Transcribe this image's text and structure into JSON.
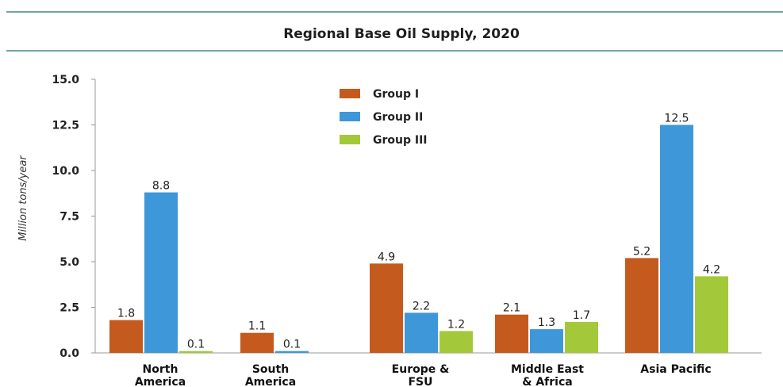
{
  "chart_data": {
    "type": "bar",
    "title": "Regional Base Oil Supply, 2020",
    "ylabel": "Million tons/year",
    "xlabel": "",
    "ylim": [
      0,
      15
    ],
    "yticks": [
      "0.0",
      "2.5",
      "5.0",
      "7.5",
      "10.0",
      "12.5",
      "15.0"
    ],
    "categories": [
      [
        "North",
        "America"
      ],
      [
        "South",
        "America"
      ],
      [
        "Europe &",
        "FSU"
      ],
      [
        "Middle East",
        "& Africa"
      ],
      [
        "Asia Pacific"
      ]
    ],
    "series": [
      {
        "name": "Group I",
        "color": "#c55a1e",
        "values": [
          1.8,
          1.1,
          4.9,
          2.1,
          5.2
        ],
        "labels": [
          "1.8",
          "1.1",
          "4.9",
          "2.1",
          "5.2"
        ]
      },
      {
        "name": "Group II",
        "color": "#3d97d9",
        "values": [
          8.8,
          0.1,
          2.2,
          1.3,
          12.5
        ],
        "labels": [
          "8.8",
          "0.1",
          "2.2",
          "1.3",
          "12.5"
        ]
      },
      {
        "name": "Group III",
        "color": "#a3c93a",
        "values": [
          0.1,
          null,
          1.2,
          1.7,
          4.2
        ],
        "labels": [
          "0.1",
          "",
          "1.2",
          "1.7",
          "4.2"
        ]
      }
    ],
    "legend_position": "top-center",
    "grid": false
  },
  "colors": {
    "divider": "#3f8a79",
    "axis": "#999999"
  }
}
